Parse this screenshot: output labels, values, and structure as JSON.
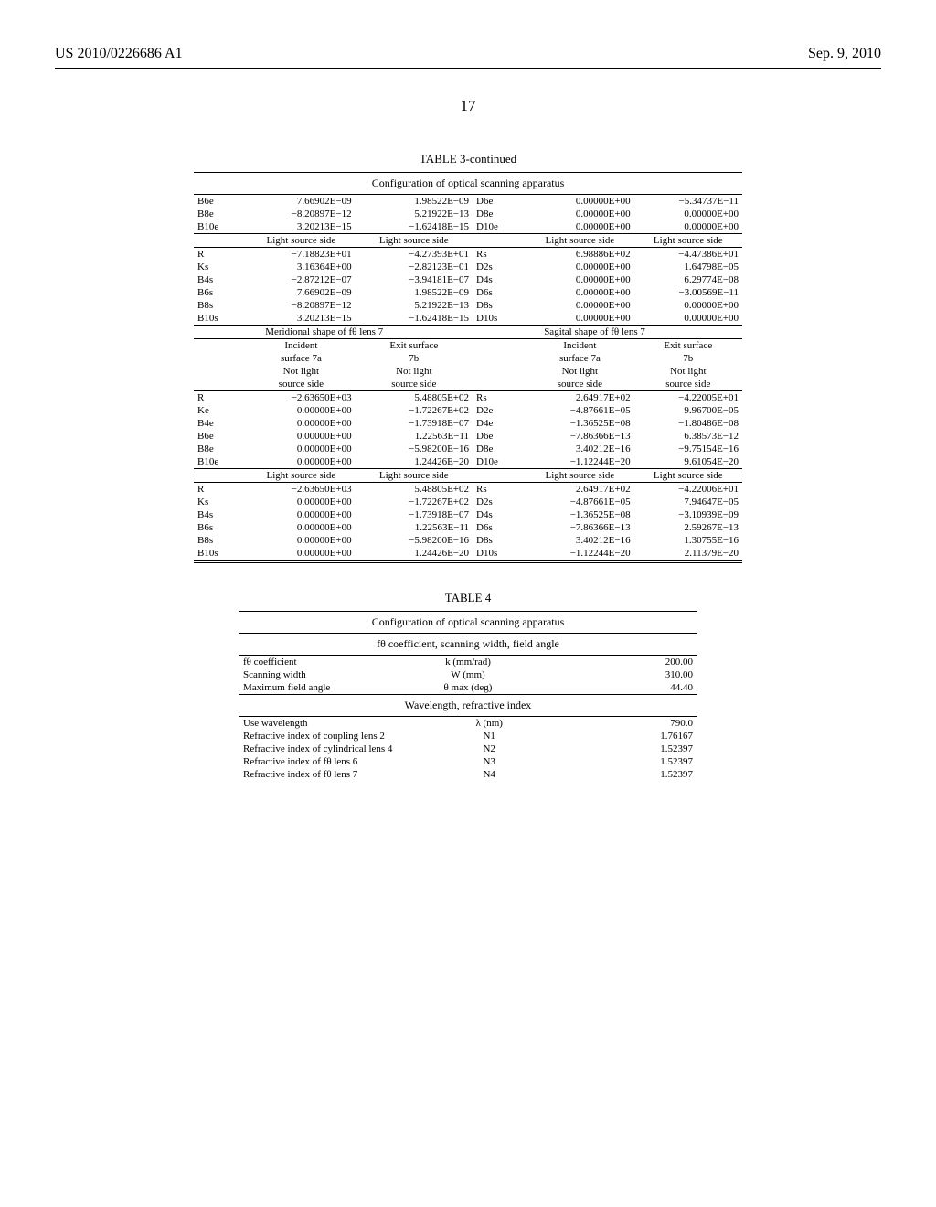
{
  "header": {
    "patent_number": "US 2010/0226686 A1",
    "date": "Sep. 9, 2010",
    "page_number": "17"
  },
  "table3": {
    "title": "TABLE 3-continued",
    "caption": "Configuration of optical scanning apparatus",
    "block_a": {
      "rows": [
        {
          "l": "B6e",
          "c1": "7.66902E−09",
          "c2": "1.98522E−09",
          "m": "D6e",
          "c4": "0.00000E+00",
          "c5": "−5.34737E−11"
        },
        {
          "l": "B8e",
          "c1": "−8.20897E−12",
          "c2": "5.21922E−13",
          "m": "D8e",
          "c4": "0.00000E+00",
          "c5": "0.00000E+00"
        },
        {
          "l": "B10e",
          "c1": "3.20213E−15",
          "c2": "−1.62418E−15",
          "m": "D10e",
          "c4": "0.00000E+00",
          "c5": "0.00000E+00"
        }
      ]
    },
    "block_b": {
      "hdr": [
        "Light source side",
        "Light source side",
        "Light source side",
        "Light source side"
      ],
      "rows": [
        {
          "l": "R",
          "c1": "−7.18823E+01",
          "c2": "−4.27393E+01",
          "m": "Rs",
          "c4": "6.98886E+02",
          "c5": "−4.47386E+01"
        },
        {
          "l": "Ks",
          "c1": "3.16364E+00",
          "c2": "−2.82123E−01",
          "m": "D2s",
          "c4": "0.00000E+00",
          "c5": "1.64798E−05"
        },
        {
          "l": "B4s",
          "c1": "−2.87212E−07",
          "c2": "−3.94181E−07",
          "m": "D4s",
          "c4": "0.00000E+00",
          "c5": "6.29774E−08"
        },
        {
          "l": "B6s",
          "c1": "7.66902E−09",
          "c2": "1.98522E−09",
          "m": "D6s",
          "c4": "0.00000E+00",
          "c5": "−3.00569E−11"
        },
        {
          "l": "B8s",
          "c1": "−8.20897E−12",
          "c2": "5.21922E−13",
          "m": "D8s",
          "c4": "0.00000E+00",
          "c5": "0.00000E+00"
        },
        {
          "l": "B10s",
          "c1": "3.20213E−15",
          "c2": "−1.62418E−15",
          "m": "D10s",
          "c4": "0.00000E+00",
          "c5": "0.00000E+00"
        }
      ]
    },
    "shape_hdr": {
      "left": "Meridional shape of fθ lens 7",
      "right": "Sagital shape of fθ lens 7"
    },
    "block_c": {
      "hdr_l1": [
        "Incident",
        "Exit surface",
        "Incident",
        "Exit surface"
      ],
      "hdr_l2": [
        "surface 7a",
        "7b",
        "surface 7a",
        "7b"
      ],
      "hdr_l3": [
        "Not light",
        "Not light",
        "Not light",
        "Not light"
      ],
      "hdr_l4": [
        "source side",
        "source side",
        "source side",
        "source side"
      ],
      "rows": [
        {
          "l": "R",
          "c1": "−2.63650E+03",
          "c2": "5.48805E+02",
          "m": "Rs",
          "c4": "2.64917E+02",
          "c5": "−4.22005E+01"
        },
        {
          "l": "Ke",
          "c1": "0.00000E+00",
          "c2": "−1.72267E+02",
          "m": "D2e",
          "c4": "−4.87661E−05",
          "c5": "9.96700E−05"
        },
        {
          "l": "B4e",
          "c1": "0.00000E+00",
          "c2": "−1.73918E−07",
          "m": "D4e",
          "c4": "−1.36525E−08",
          "c5": "−1.80486E−08"
        },
        {
          "l": "B6e",
          "c1": "0.00000E+00",
          "c2": "1.22563E−11",
          "m": "D6e",
          "c4": "−7.86366E−13",
          "c5": "6.38573E−12"
        },
        {
          "l": "B8e",
          "c1": "0.00000E+00",
          "c2": "−5.98200E−16",
          "m": "D8e",
          "c4": "3.40212E−16",
          "c5": "−9.75154E−16"
        },
        {
          "l": "B10e",
          "c1": "0.00000E+00",
          "c2": "1.24426E−20",
          "m": "D10e",
          "c4": "−1.12244E−20",
          "c5": "9.61054E−20"
        }
      ]
    },
    "block_d": {
      "hdr": [
        "Light source side",
        "Light source side",
        "Light source side",
        "Light source side"
      ],
      "rows": [
        {
          "l": "R",
          "c1": "−2.63650E+03",
          "c2": "5.48805E+02",
          "m": "Rs",
          "c4": "2.64917E+02",
          "c5": "−4.22006E+01"
        },
        {
          "l": "Ks",
          "c1": "0.00000E+00",
          "c2": "−1.72267E+02",
          "m": "D2s",
          "c4": "−4.87661E−05",
          "c5": "7.94647E−05"
        },
        {
          "l": "B4s",
          "c1": "0.00000E+00",
          "c2": "−1.73918E−07",
          "m": "D4s",
          "c4": "−1.36525E−08",
          "c5": "−3.10939E−09"
        },
        {
          "l": "B6s",
          "c1": "0.00000E+00",
          "c2": "1.22563E−11",
          "m": "D6s",
          "c4": "−7.86366E−13",
          "c5": "2.59267E−13"
        },
        {
          "l": "B8s",
          "c1": "0.00000E+00",
          "c2": "−5.98200E−16",
          "m": "D8s",
          "c4": "3.40212E−16",
          "c5": "1.30755E−16"
        },
        {
          "l": "B10s",
          "c1": "0.00000E+00",
          "c2": "1.24426E−20",
          "m": "D10s",
          "c4": "−1.12244E−20",
          "c5": "2.11379E−20"
        }
      ]
    }
  },
  "table4": {
    "title": "TABLE 4",
    "caption": "Configuration of optical scanning apparatus",
    "sub1": "fθ coefficient, scanning width, field angle",
    "rows1": [
      {
        "l": "fθ coefficient",
        "s": "k (mm/rad)",
        "v": "200.00"
      },
      {
        "l": "Scanning width",
        "s": "W (mm)",
        "v": "310.00"
      },
      {
        "l": "Maximum field angle",
        "s": "θ max (deg)",
        "v": "44.40"
      }
    ],
    "sub2": "Wavelength, refractive index",
    "rows2": [
      {
        "l": "Use wavelength",
        "s": "λ (nm)",
        "v": "790.0"
      },
      {
        "l": "Refractive index of coupling lens 2",
        "s": "N1",
        "v": "1.76167"
      },
      {
        "l": "Refractive index of cylindrical lens 4",
        "s": "N2",
        "v": "1.52397"
      },
      {
        "l": "Refractive index of fθ lens 6",
        "s": "N3",
        "v": "1.52397"
      },
      {
        "l": "Refractive index of fθ lens 7",
        "s": "N4",
        "v": "1.52397"
      }
    ]
  }
}
